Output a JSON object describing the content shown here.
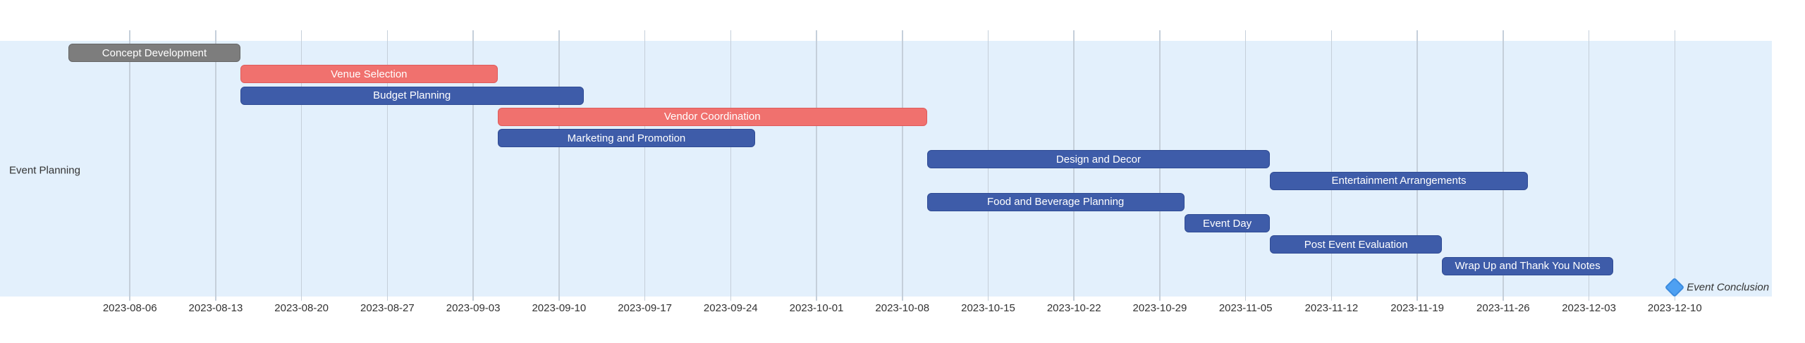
{
  "colors": {
    "background": "#ffffff",
    "band": "#e3f0fc",
    "grid": "#c5cfda",
    "axis_text": "#333333",
    "bar_text": "#ffffff",
    "task_blue": "#3e5ca9",
    "task_blue_border": "#2f4b94",
    "task_red": "#f0716e",
    "task_red_border": "#de5b5b",
    "task_gray": "#7d7d7d",
    "task_gray_border": "#666666",
    "milestone_fill": "#4ea0f2",
    "milestone_border": "#3b8bde"
  },
  "chart_data": {
    "type": "gantt",
    "title": "",
    "section_label": "Event Planning",
    "legend_position": "none",
    "grid": "weekly-vertical",
    "axis_range": [
      "2023-07-26",
      "2023-12-18"
    ],
    "x_ticks": [
      "2023-08-06",
      "2023-08-13",
      "2023-08-20",
      "2023-08-27",
      "2023-09-03",
      "2023-09-10",
      "2023-09-17",
      "2023-09-24",
      "2023-10-01",
      "2023-10-08",
      "2023-10-15",
      "2023-10-22",
      "2023-10-29",
      "2023-11-05",
      "2023-11-12",
      "2023-11-19",
      "2023-11-26",
      "2023-12-03",
      "2023-12-10"
    ],
    "tasks": [
      {
        "label": "Concept Development",
        "start": "2023-08-01",
        "end": "2023-08-15",
        "kind": "gray"
      },
      {
        "label": "Venue Selection",
        "start": "2023-08-15",
        "end": "2023-09-05",
        "kind": "red"
      },
      {
        "label": "Budget Planning",
        "start": "2023-08-15",
        "end": "2023-09-12",
        "kind": "blue"
      },
      {
        "label": "Vendor Coordination",
        "start": "2023-09-05",
        "end": "2023-10-10",
        "kind": "red"
      },
      {
        "label": "Marketing and Promotion",
        "start": "2023-09-05",
        "end": "2023-09-26",
        "kind": "blue"
      },
      {
        "label": "Design and Decor",
        "start": "2023-10-10",
        "end": "2023-11-07",
        "kind": "blue"
      },
      {
        "label": "Entertainment Arrangements",
        "start": "2023-11-07",
        "end": "2023-11-28",
        "kind": "blue"
      },
      {
        "label": "Food and Beverage Planning",
        "start": "2023-10-10",
        "end": "2023-10-31",
        "kind": "blue"
      },
      {
        "label": "Event Day",
        "start": "2023-10-31",
        "end": "2023-11-07",
        "kind": "blue"
      },
      {
        "label": "Post Event Evaluation",
        "start": "2023-11-07",
        "end": "2023-11-21",
        "kind": "blue"
      },
      {
        "label": "Wrap Up and Thank You Notes",
        "start": "2023-11-21",
        "end": "2023-12-05",
        "kind": "blue"
      }
    ],
    "milestone": {
      "label": "Event Conclusion",
      "date": "2023-12-10"
    }
  }
}
